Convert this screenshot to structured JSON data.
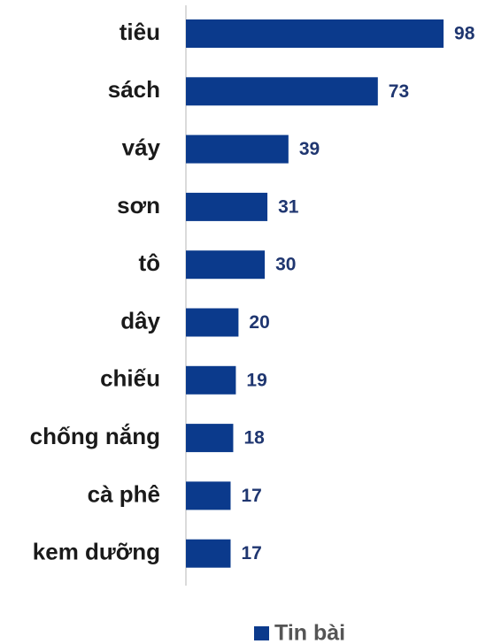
{
  "chart_data": {
    "type": "bar",
    "orientation": "horizontal",
    "categories": [
      "tiêu",
      "sách",
      "váy",
      "sơn",
      "tô",
      "dây",
      "chiếu",
      "chống nắng",
      "cà phê",
      "kem dưỡng"
    ],
    "series": [
      {
        "name": "Tin bài",
        "color": "#0b3a8c",
        "values": [
          98,
          73,
          39,
          31,
          30,
          20,
          19,
          18,
          17,
          17
        ]
      }
    ],
    "xlim": [
      0,
      100
    ],
    "legend": "bottom"
  }
}
